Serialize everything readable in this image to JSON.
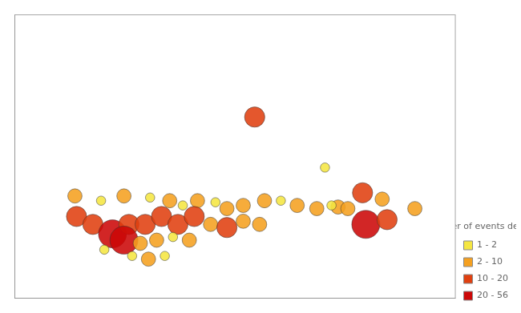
{
  "chart_data": {
    "type": "scatter",
    "x": [
      -3.8,
      0.5,
      2.8,
      1.3,
      4.0,
      3.0,
      4.3,
      6.0,
      -14.8,
      -13.2,
      -11.8,
      -10.2,
      -9.0,
      -8.2,
      -7.3,
      -6.2,
      -5.5,
      -4.5,
      -3.2,
      -2.2,
      -1.2,
      0.0,
      0.9,
      1.9,
      -14.7,
      -13.7,
      -12.5,
      -11.5,
      -10.5,
      -9.5,
      -8.5,
      -7.5,
      -6.5,
      -5.5,
      -4.5,
      -3.5,
      -11.8,
      -10.8,
      -9.8,
      -8.8,
      -7.8,
      -13.0,
      -11.3,
      -10.3,
      -9.3
    ],
    "values": [
      20.0,
      16.8,
      15.2,
      14.3,
      14.8,
      13.2,
      13.5,
      14.2,
      15.0,
      14.7,
      15.0,
      14.9,
      14.7,
      14.4,
      14.7,
      14.6,
      14.2,
      14.4,
      14.7,
      14.7,
      14.4,
      14.2,
      14.4,
      14.2,
      13.7,
      13.2,
      12.6,
      13.2,
      13.2,
      13.7,
      13.2,
      13.7,
      13.2,
      13.0,
      13.4,
      13.2,
      12.2,
      12.0,
      12.2,
      12.4,
      12.2,
      11.6,
      11.2,
      11.0,
      11.2
    ],
    "sizes": [
      260,
      55,
      260,
      130,
      130,
      500,
      260,
      130,
      130,
      55,
      130,
      55,
      130,
      55,
      130,
      55,
      130,
      130,
      130,
      55,
      130,
      130,
      55,
      130,
      260,
      260,
      500,
      260,
      260,
      260,
      260,
      260,
      130,
      260,
      130,
      130,
      500,
      130,
      130,
      55,
      130,
      55,
      55,
      130,
      55
    ],
    "colors": [
      "#E04010",
      "#F5E642",
      "#E04010",
      "#F5A020",
      "#F5A020",
      "#CC0808",
      "#E04010",
      "#F5A020",
      "#F5A020",
      "#F5E642",
      "#F5A020",
      "#F5E642",
      "#F5A020",
      "#F5E642",
      "#F5A020",
      "#F5E642",
      "#F5A020",
      "#F5A020",
      "#F5A020",
      "#F5E642",
      "#F5A020",
      "#F5A020",
      "#F5E642",
      "#F5A020",
      "#E04010",
      "#E04010",
      "#CC0808",
      "#E04010",
      "#E04010",
      "#E04010",
      "#E04010",
      "#E04010",
      "#F5A020",
      "#E04010",
      "#F5A020",
      "#F5A020",
      "#CC0808",
      "#F5A020",
      "#F5A020",
      "#F5E642",
      "#F5A020",
      "#F5E642",
      "#F5E642",
      "#F5A020",
      "#F5E642"
    ],
    "xlim": [
      -18.5,
      8.5
    ],
    "ylim": [
      8.5,
      26.5
    ],
    "grid": false,
    "tick_labels": false,
    "legend": "lower right",
    "legend_title": "Number of events detected",
    "legend_items": [
      {
        "label": "1 - 2",
        "color": "#F5E642"
      },
      {
        "label": "2 - 10",
        "color": "#F5A020"
      },
      {
        "label": "10 - 20",
        "color": "#E04010"
      },
      {
        "label": "20 - 56",
        "color": "#CC0808"
      }
    ]
  }
}
